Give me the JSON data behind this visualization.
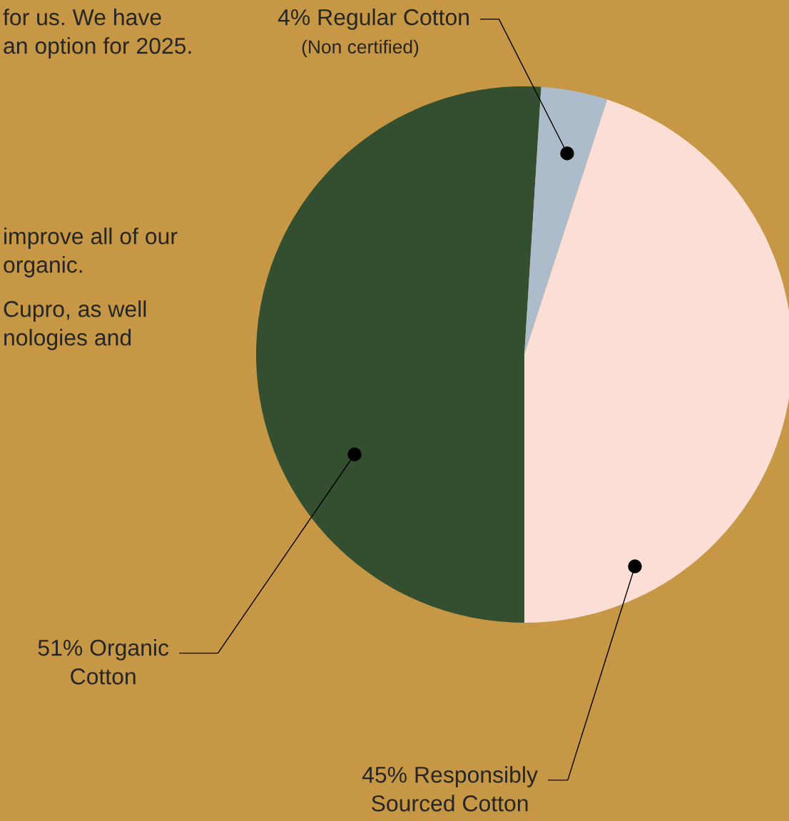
{
  "chart_data": {
    "type": "pie",
    "categories": [
      "Organic Cotton",
      "Regular Cotton",
      "Responsibly Sourced Cotton"
    ],
    "values": [
      51,
      4,
      45
    ],
    "value_labels": [
      "51%",
      "4%",
      "45%"
    ],
    "colors": [
      "#334f30",
      "#adbccb",
      "#fbdfd6"
    ],
    "annotations": [
      "(Non certified)",
      "for us. We have",
      "an option for 2025.",
      "improve all of our",
      "organic.",
      "Cupro, as well",
      "nologies and"
    ],
    "legend": false
  }
}
